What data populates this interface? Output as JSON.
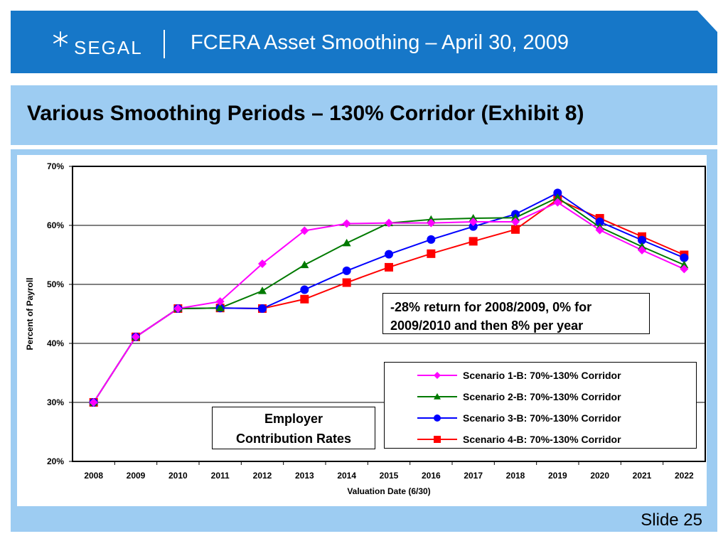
{
  "header": {
    "logo": "SEGAL",
    "title": "FCERA Asset Smoothing – April 30, 2009"
  },
  "subtitle": "Various Smoothing Periods – 130% Corridor (Exhibit 8)",
  "footer": {
    "slide": "Slide 25"
  },
  "annotations": {
    "callout_line1": "-28% return for 2008/2009, 0% for",
    "callout_line2": "2009/2010 and then 8% per year",
    "label_line1": "Employer",
    "label_line2": "Contribution Rates"
  },
  "colors": {
    "banner": "#1677c8",
    "band": "#9dccf2",
    "series": [
      "#ff00ff",
      "#007a00",
      "#0000ff",
      "#ff0000"
    ]
  },
  "chart_data": {
    "type": "line",
    "title": "",
    "xlabel": "Valuation Date (6/30)",
    "ylabel": "Percent of Payroll",
    "x": [
      "2008",
      "2009",
      "2010",
      "2011",
      "2012",
      "2013",
      "2014",
      "2015",
      "2016",
      "2017",
      "2018",
      "2019",
      "2020",
      "2021",
      "2022"
    ],
    "ylim": [
      20,
      70
    ],
    "yticks": [
      "20%",
      "30%",
      "40%",
      "50%",
      "60%",
      "70%"
    ],
    "grid": true,
    "legend_position": "bottom-right",
    "series": [
      {
        "name": "Scenario 1-B: 70%-130% Corridor",
        "marker": "diamond",
        "values": [
          30.0,
          41.1,
          45.9,
          47.1,
          53.5,
          59.1,
          60.3,
          60.4,
          60.4,
          60.6,
          60.6,
          63.9,
          59.2,
          55.8,
          52.6
        ]
      },
      {
        "name": "Scenario 2-B: 70%-130% Corridor",
        "marker": "triangle",
        "values": [
          30.0,
          41.1,
          45.9,
          46.0,
          48.9,
          53.3,
          57.0,
          60.4,
          61.0,
          61.2,
          61.3,
          64.7,
          59.7,
          56.4,
          53.3
        ]
      },
      {
        "name": "Scenario 3-B: 70%-130% Corridor",
        "marker": "circle",
        "values": [
          30.0,
          41.1,
          45.9,
          46.0,
          45.9,
          49.1,
          52.3,
          55.1,
          57.6,
          59.8,
          61.9,
          65.5,
          60.6,
          57.5,
          54.5
        ]
      },
      {
        "name": "Scenario 4-B: 70%-130% Corridor",
        "marker": "square",
        "values": [
          30.0,
          41.1,
          45.9,
          46.0,
          45.9,
          47.5,
          50.3,
          52.9,
          55.2,
          57.3,
          59.3,
          64.4,
          61.2,
          58.1,
          55.0
        ]
      }
    ]
  }
}
